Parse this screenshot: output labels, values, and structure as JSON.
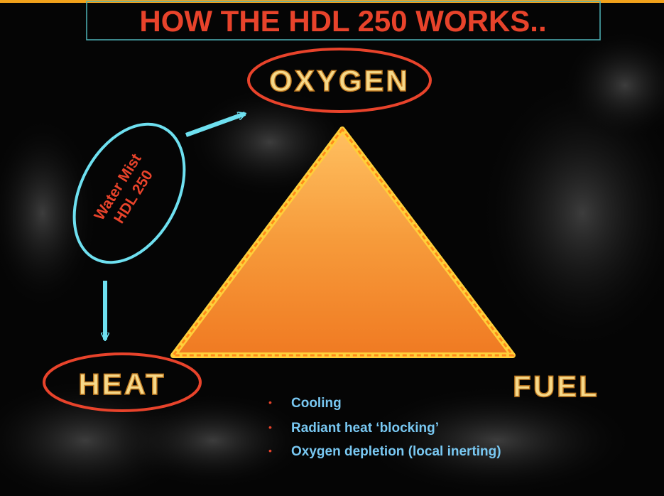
{
  "title": "HOW THE HDL 250 WORKS..",
  "triangle": {
    "top": "OXYGEN",
    "left": "HEAT",
    "right": "FUEL"
  },
  "agent": {
    "lines": [
      "Water Mist",
      "HDL 250"
    ]
  },
  "bullets": [
    "Cooling",
    "Radiant heat ‘blocking’",
    "Oxygen depletion (local inerting)"
  ]
}
